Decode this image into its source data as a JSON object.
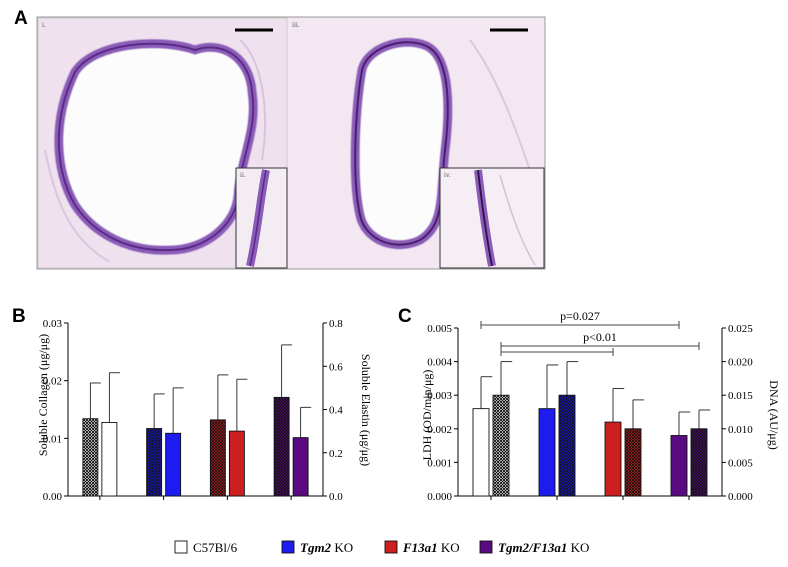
{
  "panels": {
    "a": {
      "letter": "A",
      "labels": {
        "i": "i.",
        "ii": "ii.",
        "iii": "iii.",
        "iv": "iv."
      }
    },
    "b": {
      "letter": "B",
      "chart_data": {
        "type": "bar",
        "ylabel": "Soluble Collagen (μg/μg)",
        "y2label": "Soluble Elastin (μg/μg)",
        "ylim": [
          0,
          0.03
        ],
        "y2lim": [
          0,
          0.8
        ],
        "yticks": [
          "0.00",
          "0.01",
          "0.02",
          "0.03"
        ],
        "y2ticks": [
          "0.0",
          "0.2",
          "0.4",
          "0.6",
          "0.8"
        ],
        "groups": [
          {
            "group": "C57Bl/6",
            "collagen": 0.0134,
            "collagen_err": 0.0062,
            "elastin": 0.34,
            "elastin_err": 0.23
          },
          {
            "group": "Tgm2 KO",
            "collagen": 0.0117,
            "collagen_err": 0.006,
            "elastin": 0.29,
            "elastin_err": 0.21
          },
          {
            "group": "F13a1 KO",
            "collagen": 0.0132,
            "collagen_err": 0.0078,
            "elastin": 0.3,
            "elastin_err": 0.24
          },
          {
            "group": "Tgm2/F13a1 KO",
            "collagen": 0.0171,
            "collagen_err": 0.0091,
            "elastin": 0.27,
            "elastin_err": 0.14
          }
        ]
      }
    },
    "c": {
      "letter": "C",
      "chart_data": {
        "type": "bar",
        "ylabel": "LDH (OD/min/μg)",
        "y2label": "DNA (AU/μg)",
        "ylim": [
          0,
          0.005
        ],
        "y2lim": [
          0,
          0.025
        ],
        "yticks": [
          "0.000",
          "0.001",
          "0.002",
          "0.003",
          "0.004",
          "0.005"
        ],
        "y2ticks": [
          "0.000",
          "0.005",
          "0.010",
          "0.015",
          "0.020",
          "0.025"
        ],
        "groups": [
          {
            "group": "C57Bl/6",
            "ldh": 0.0026,
            "ldh_err": 0.00095,
            "dna": 0.015,
            "dna_err": 0.005
          },
          {
            "group": "Tgm2 KO",
            "ldh": 0.0026,
            "ldh_err": 0.0013,
            "dna": 0.015,
            "dna_err": 0.005
          },
          {
            "group": "F13a1 KO",
            "ldh": 0.0022,
            "ldh_err": 0.001,
            "dna": 0.01,
            "dna_err": 0.0043
          },
          {
            "group": "Tgm2/F13a1 KO",
            "ldh": 0.0018,
            "ldh_err": 0.0007,
            "dna": 0.01,
            "dna_err": 0.0028
          }
        ],
        "annotations": [
          {
            "text": "p=0.027"
          },
          {
            "text": "p<0.01"
          }
        ]
      }
    }
  },
  "legend": [
    {
      "name": "C57Bl/6",
      "italic": "",
      "suffix": "C57Bl/6",
      "color": "#ffffff"
    },
    {
      "name": "Tgm2 KO",
      "italic": "Tgm2",
      "suffix": " KO",
      "color": "#1c1cf0"
    },
    {
      "name": "F13a1 KO",
      "italic": "F13a1",
      "suffix": " KO",
      "color": "#cc1f1f"
    },
    {
      "name": "Tgm2/F13a1 KO",
      "italic": "Tgm2/F13a1",
      "suffix": " KO",
      "color": "#5a0a80"
    }
  ],
  "colors": {
    "wt": "#ffffff",
    "tgm2": "#1c1cf0",
    "f13a1": "#cc1f1f",
    "dko": "#5a0a80",
    "stain": "#8a5bb8",
    "tissue": "#ead9ee"
  }
}
